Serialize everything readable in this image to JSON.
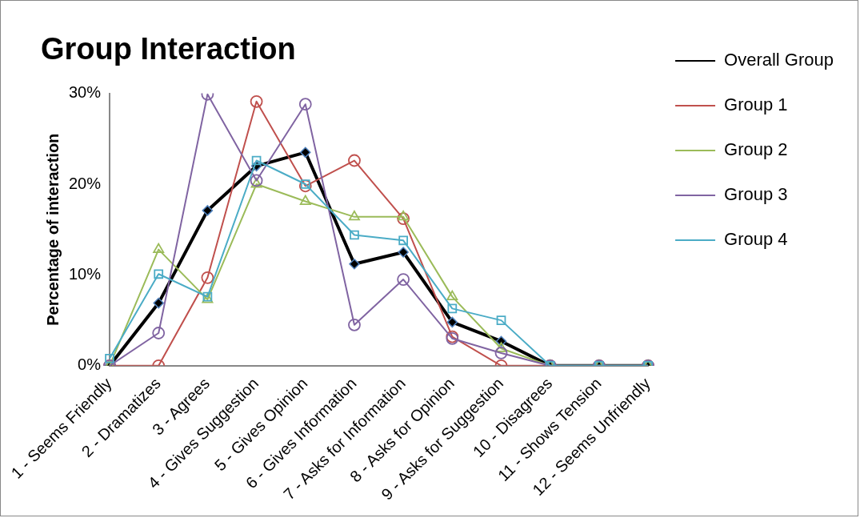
{
  "chart_data": {
    "type": "line",
    "title": "Group Interaction",
    "ylabel": "Percentage of interaction",
    "categories": [
      "1 - Seems Friendly",
      "2 - Dramatizes",
      "3 - Agrees",
      "4 - Gives Suggestion",
      "5 - Gives Opinion",
      "6 - Gives Information",
      "7 - Asks for Information",
      "8 - Asks for Opinion",
      "9 - Asks for Suggestion",
      "10 - Disagrees",
      "11 - Shows Tension",
      "12 - Seems Unfriendly"
    ],
    "series": [
      {
        "name": "Overall Group",
        "color": "#000000",
        "marker": "diamond",
        "values": [
          0,
          6.9,
          17.1,
          22.0,
          23.5,
          11.2,
          12.5,
          4.8,
          2.7,
          0,
          0,
          0
        ]
      },
      {
        "name": "Group 1",
        "color": "#c0504d",
        "marker": "circle",
        "values": [
          0,
          0,
          9.7,
          29.1,
          19.8,
          22.6,
          16.2,
          3.2,
          0,
          0,
          0,
          0
        ]
      },
      {
        "name": "Group 2",
        "color": "#9bbb59",
        "marker": "triangle",
        "values": [
          0,
          12.8,
          7.3,
          20.0,
          18.1,
          16.4,
          16.4,
          7.6,
          1.9,
          0,
          0,
          0
        ]
      },
      {
        "name": "Group 3",
        "color": "#8064a2",
        "marker": "circle",
        "values": [
          0,
          3.6,
          29.9,
          20.4,
          28.8,
          4.5,
          9.5,
          3.0,
          1.4,
          0,
          0,
          0
        ]
      },
      {
        "name": "Group 4",
        "color": "#4bacc6",
        "marker": "square",
        "values": [
          0.8,
          10.1,
          7.6,
          22.6,
          20.0,
          14.4,
          13.8,
          6.3,
          5.0,
          0,
          0,
          0
        ]
      }
    ],
    "ylim": [
      0,
      30
    ],
    "yticks": [
      {
        "value": 0,
        "label": "0%"
      },
      {
        "value": 10,
        "label": "10%"
      },
      {
        "value": 20,
        "label": "20%"
      },
      {
        "value": 30,
        "label": "30%"
      }
    ],
    "grid": false,
    "legend": "top right",
    "line_style": "solid"
  }
}
